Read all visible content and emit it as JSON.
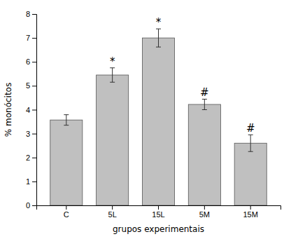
{
  "chart_data": {
    "type": "bar",
    "categories": [
      "C",
      "5L",
      "15L",
      "5M",
      "15M"
    ],
    "values": [
      3.57,
      5.45,
      7.0,
      4.22,
      2.6
    ],
    "errors": [
      0.22,
      0.3,
      0.38,
      0.22,
      0.35
    ],
    "annotations": [
      null,
      "*",
      "*",
      "#",
      "#"
    ],
    "color": "#c0c0c0",
    "xlabel": "grupos experimentais",
    "ylabel": "% monócitos",
    "ylim": [
      0,
      8
    ],
    "yticks": [
      0,
      1,
      2,
      3,
      4,
      5,
      6,
      7,
      8
    ],
    "grid": false
  }
}
